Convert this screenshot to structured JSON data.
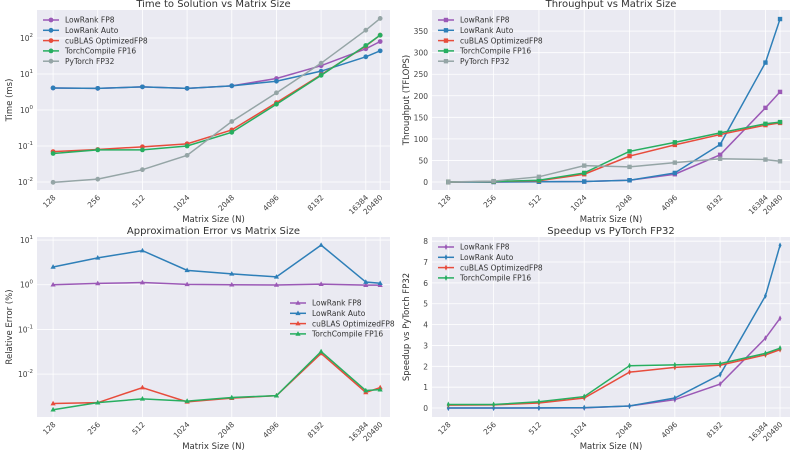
{
  "chart_data": [
    {
      "type": "line",
      "title": "Time to Solution vs Matrix Size",
      "xlabel": "Matrix Size (N)",
      "ylabel": "Time (ms)",
      "yscale": "log",
      "ylim": [
        0.006,
        600
      ],
      "yticks": [
        0.01,
        0.1,
        1,
        10,
        100
      ],
      "marker": "circle",
      "legend": "upper-left",
      "grid": true,
      "x": [
        128,
        256,
        512,
        1024,
        2048,
        4096,
        8192,
        16384,
        20480
      ],
      "series": [
        {
          "name": "LowRank FP8",
          "color": "#9b59b6",
          "values": [
            4.1,
            4.0,
            4.4,
            4.0,
            4.7,
            7.5,
            17,
            50,
            80
          ]
        },
        {
          "name": "LowRank Auto",
          "color": "#2e7fb8",
          "values": [
            4.1,
            4.0,
            4.4,
            4.0,
            4.7,
            6.3,
            12,
            30,
            44
          ]
        },
        {
          "name": "cuBLAS OptimizedFP8",
          "color": "#e74c3c",
          "values": [
            0.07,
            0.08,
            0.095,
            0.115,
            0.28,
            1.6,
            9.5,
            60,
            120
          ]
        },
        {
          "name": "TorchCompile FP16",
          "color": "#27ae60",
          "values": [
            0.062,
            0.078,
            0.078,
            0.1,
            0.24,
            1.45,
            9.2,
            62,
            120
          ]
        },
        {
          "name": "PyTorch FP32",
          "color": "#95a5a6",
          "values": [
            0.0098,
            0.012,
            0.022,
            0.055,
            0.48,
            3.0,
            20,
            165,
            350
          ]
        }
      ]
    },
    {
      "type": "line",
      "title": "Throughput vs Matrix Size",
      "xlabel": "Matrix Size (N)",
      "ylabel": "Throughput (TFLOPS)",
      "yscale": "linear",
      "ylim": [
        -18.6,
        399
      ],
      "yticks": [
        0,
        50,
        100,
        150,
        200,
        250,
        300,
        350
      ],
      "marker": "square",
      "legend": "upper-left",
      "grid": true,
      "x": [
        128,
        256,
        512,
        1024,
        2048,
        4096,
        8192,
        16384,
        20480
      ],
      "series": [
        {
          "name": "LowRank FP8",
          "color": "#9b59b6",
          "values": [
            0,
            0,
            0.5,
            1,
            4,
            18,
            63,
            172,
            209
          ]
        },
        {
          "name": "LowRank Auto",
          "color": "#2e7fb8",
          "values": [
            0,
            0,
            0.5,
            1,
            4,
            21,
            87,
            277,
            378
          ]
        },
        {
          "name": "cuBLAS OptimizedFP8",
          "color": "#e74c3c",
          "values": [
            0,
            1,
            3,
            18,
            60,
            86,
            110,
            132,
            137
          ]
        },
        {
          "name": "TorchCompile FP16",
          "color": "#27ae60",
          "values": [
            0,
            1,
            4,
            21,
            71,
            92,
            114,
            135,
            139
          ]
        },
        {
          "name": "PyTorch FP32",
          "color": "#95a5a6",
          "values": [
            0,
            2,
            12,
            38,
            35,
            45,
            54,
            52,
            48
          ]
        }
      ]
    },
    {
      "type": "line",
      "title": "Approximation Error vs Matrix Size",
      "xlabel": "Matrix Size (N)",
      "ylabel": "Relative Error (%)",
      "yscale": "log",
      "ylim": [
        0.0011,
        11.7
      ],
      "yticks": [
        0.01,
        0.1,
        1,
        10
      ],
      "marker": "triangle",
      "legend": "center-right",
      "grid": true,
      "x": [
        128,
        256,
        512,
        1024,
        2048,
        4096,
        8192,
        16384,
        20480
      ],
      "series": [
        {
          "name": "LowRank FP8",
          "color": "#9b59b6",
          "values": [
            1.0,
            1.07,
            1.12,
            1.02,
            1.0,
            0.99,
            1.03,
            0.98,
            0.98
          ]
        },
        {
          "name": "LowRank Auto",
          "color": "#2e7fb8",
          "values": [
            2.5,
            4.0,
            5.8,
            2.1,
            1.75,
            1.5,
            7.7,
            1.15,
            1.08
          ]
        },
        {
          "name": "cuBLAS OptimizedFP8",
          "color": "#e74c3c",
          "values": [
            0.0022,
            0.0023,
            0.005,
            0.0024,
            0.0029,
            0.0033,
            0.029,
            0.0039,
            0.005
          ]
        },
        {
          "name": "TorchCompile FP16",
          "color": "#27ae60",
          "values": [
            0.0016,
            0.0023,
            0.0028,
            0.0025,
            0.003,
            0.0033,
            0.032,
            0.0043,
            0.0045
          ]
        }
      ]
    },
    {
      "type": "line",
      "title": "Speedup vs PyTorch FP32",
      "xlabel": "Matrix Size (N)",
      "ylabel": "Speedup vs PyTorch FP32",
      "yscale": "linear",
      "ylim": [
        -0.43,
        8.2
      ],
      "yticks": [
        0,
        1,
        2,
        3,
        4,
        5,
        6,
        7,
        8
      ],
      "marker": "diamond",
      "legend": "upper-left",
      "grid": true,
      "x": [
        128,
        256,
        512,
        1024,
        2048,
        4096,
        8192,
        16384,
        20480
      ],
      "series": [
        {
          "name": "LowRank FP8",
          "color": "#9b59b6",
          "values": [
            0,
            0,
            0,
            0.01,
            0.1,
            0.4,
            1.15,
            3.35,
            4.3
          ]
        },
        {
          "name": "LowRank Auto",
          "color": "#2e7fb8",
          "values": [
            0,
            0,
            0.01,
            0.02,
            0.1,
            0.48,
            1.6,
            5.38,
            7.8
          ]
        },
        {
          "name": "cuBLAS OptimizedFP8",
          "color": "#e74c3c",
          "values": [
            0.14,
            0.15,
            0.24,
            0.48,
            1.72,
            1.95,
            2.05,
            2.55,
            2.8
          ]
        },
        {
          "name": "TorchCompile FP16",
          "color": "#27ae60",
          "values": [
            0.17,
            0.17,
            0.3,
            0.55,
            2.03,
            2.07,
            2.13,
            2.62,
            2.87
          ]
        }
      ]
    }
  ]
}
